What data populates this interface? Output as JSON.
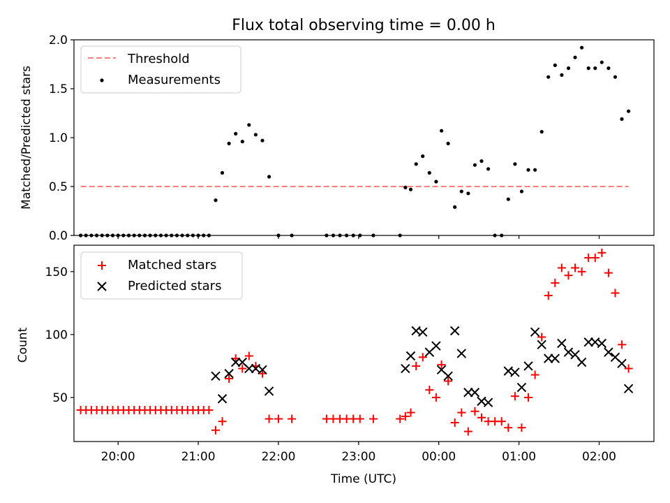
{
  "chart_data": [
    {
      "type": "scatter",
      "title": "Flux total observing time = 0.00 h",
      "xlabel": "",
      "ylabel": "Matched/Predicted stars",
      "ylim": [
        0,
        2.0
      ],
      "yticks": [
        "0.0",
        "0.5",
        "1.0",
        "1.5",
        "2.0"
      ],
      "xlim": [
        "19:27",
        "02:41"
      ],
      "grid": false,
      "legend": "top-left",
      "threshold": {
        "name": "Threshold",
        "value": 0.5,
        "x_start": "19:32",
        "x_end": "02:22",
        "color": "#ff7f7f"
      },
      "series": [
        {
          "name": "Measurements",
          "color": "#000000",
          "points": [
            [
              "19:32",
              0
            ],
            [
              "19:36",
              0
            ],
            [
              "19:40",
              0
            ],
            [
              "19:44",
              0
            ],
            [
              "19:48",
              0
            ],
            [
              "19:52",
              0
            ],
            [
              "19:56",
              0
            ],
            [
              "20:00",
              0
            ],
            [
              "20:04",
              0
            ],
            [
              "20:08",
              0
            ],
            [
              "20:12",
              0
            ],
            [
              "20:16",
              0
            ],
            [
              "20:20",
              0
            ],
            [
              "20:24",
              0
            ],
            [
              "20:28",
              0
            ],
            [
              "20:32",
              0
            ],
            [
              "20:36",
              0
            ],
            [
              "20:40",
              0
            ],
            [
              "20:44",
              0
            ],
            [
              "20:48",
              0
            ],
            [
              "20:52",
              0
            ],
            [
              "20:56",
              0
            ],
            [
              "21:00",
              0
            ],
            [
              "21:04",
              0
            ],
            [
              "21:08",
              0
            ],
            [
              "21:13",
              0.36
            ],
            [
              "21:18",
              0.64
            ],
            [
              "21:23",
              0.94
            ],
            [
              "21:28",
              1.04
            ],
            [
              "21:33",
              0.96
            ],
            [
              "21:38",
              1.13
            ],
            [
              "21:43",
              1.03
            ],
            [
              "21:48",
              0.97
            ],
            [
              "21:53",
              0.6
            ],
            [
              "22:00",
              0
            ],
            [
              "22:10",
              0
            ],
            [
              "22:36",
              0
            ],
            [
              "22:41",
              0
            ],
            [
              "22:46",
              0
            ],
            [
              "22:51",
              0
            ],
            [
              "22:56",
              0
            ],
            [
              "23:01",
              0
            ],
            [
              "23:11",
              0
            ],
            [
              "23:31",
              0
            ],
            [
              "23:35",
              0.49
            ],
            [
              "23:39",
              0.47
            ],
            [
              "23:43",
              0.73
            ],
            [
              "23:48",
              0.81
            ],
            [
              "23:53",
              0.64
            ],
            [
              "23:58",
              0.55
            ],
            [
              "00:02",
              1.07
            ],
            [
              "00:07",
              0.94
            ],
            [
              "00:12",
              0.29
            ],
            [
              "00:17",
              0.45
            ],
            [
              "00:22",
              0.43
            ],
            [
              "00:27",
              0.72
            ],
            [
              "00:32",
              0.76
            ],
            [
              "00:37",
              0.68
            ],
            [
              "00:42",
              0
            ],
            [
              "00:47",
              0
            ],
            [
              "00:52",
              0.37
            ],
            [
              "00:57",
              0.73
            ],
            [
              "01:02",
              0.45
            ],
            [
              "01:07",
              0.67
            ],
            [
              "01:12",
              0.67
            ],
            [
              "01:17",
              1.06
            ],
            [
              "01:22",
              1.62
            ],
            [
              "01:27",
              1.74
            ],
            [
              "01:32",
              1.64
            ],
            [
              "01:37",
              1.71
            ],
            [
              "01:42",
              1.82
            ],
            [
              "01:47",
              1.92
            ],
            [
              "01:52",
              1.71
            ],
            [
              "01:57",
              1.71
            ],
            [
              "02:02",
              1.77
            ],
            [
              "02:07",
              1.71
            ],
            [
              "02:12",
              1.62
            ],
            [
              "02:17",
              1.19
            ],
            [
              "02:22",
              1.27
            ]
          ]
        }
      ]
    },
    {
      "type": "scatter",
      "title": "",
      "xlabel": "Time (UTC)",
      "ylabel": "Count",
      "ylim": [
        15,
        171
      ],
      "yticks": [
        "50",
        "100",
        "150"
      ],
      "xlim": [
        "19:27",
        "02:41"
      ],
      "xticks": [
        "20:00",
        "21:00",
        "22:00",
        "23:00",
        "00:00",
        "01:00",
        "02:00"
      ],
      "grid": false,
      "legend": "top-left",
      "series": [
        {
          "name": "Matched stars",
          "marker": "plus",
          "color": "#ff0000",
          "points": [
            [
              "19:32",
              40
            ],
            [
              "19:36",
              40
            ],
            [
              "19:40",
              40
            ],
            [
              "19:44",
              40
            ],
            [
              "19:48",
              40
            ],
            [
              "19:52",
              40
            ],
            [
              "19:56",
              40
            ],
            [
              "20:00",
              40
            ],
            [
              "20:04",
              40
            ],
            [
              "20:08",
              40
            ],
            [
              "20:12",
              40
            ],
            [
              "20:16",
              40
            ],
            [
              "20:20",
              40
            ],
            [
              "20:24",
              40
            ],
            [
              "20:28",
              40
            ],
            [
              "20:32",
              40
            ],
            [
              "20:36",
              40
            ],
            [
              "20:40",
              40
            ],
            [
              "20:44",
              40
            ],
            [
              "20:48",
              40
            ],
            [
              "20:52",
              40
            ],
            [
              "20:56",
              40
            ],
            [
              "21:00",
              40
            ],
            [
              "21:04",
              40
            ],
            [
              "21:08",
              40
            ],
            [
              "21:13",
              24
            ],
            [
              "21:18",
              31
            ],
            [
              "21:23",
              65
            ],
            [
              "21:28",
              81
            ],
            [
              "21:33",
              73
            ],
            [
              "21:38",
              83
            ],
            [
              "21:43",
              75
            ],
            [
              "21:48",
              69
            ],
            [
              "21:53",
              33
            ],
            [
              "22:00",
              33
            ],
            [
              "22:10",
              33
            ],
            [
              "22:36",
              33
            ],
            [
              "22:41",
              33
            ],
            [
              "22:46",
              33
            ],
            [
              "22:51",
              33
            ],
            [
              "22:56",
              33
            ],
            [
              "23:01",
              33
            ],
            [
              "23:11",
              33
            ],
            [
              "23:31",
              33
            ],
            [
              "23:35",
              35
            ],
            [
              "23:39",
              38
            ],
            [
              "23:43",
              75
            ],
            [
              "23:48",
              82
            ],
            [
              "23:53",
              56
            ],
            [
              "23:58",
              50
            ],
            [
              "00:02",
              76
            ],
            [
              "00:07",
              63
            ],
            [
              "00:12",
              30
            ],
            [
              "00:17",
              38
            ],
            [
              "00:22",
              23
            ],
            [
              "00:27",
              39
            ],
            [
              "00:32",
              34
            ],
            [
              "00:37",
              31
            ],
            [
              "00:42",
              31
            ],
            [
              "00:47",
              31
            ],
            [
              "00:52",
              26
            ],
            [
              "00:57",
              51
            ],
            [
              "01:02",
              26
            ],
            [
              "01:07",
              50
            ],
            [
              "01:12",
              68
            ],
            [
              "01:17",
              98
            ],
            [
              "01:22",
              131
            ],
            [
              "01:27",
              141
            ],
            [
              "01:32",
              153
            ],
            [
              "01:37",
              147
            ],
            [
              "01:42",
              153
            ],
            [
              "01:47",
              150
            ],
            [
              "01:52",
              161
            ],
            [
              "01:57",
              161
            ],
            [
              "02:02",
              165
            ],
            [
              "02:07",
              149
            ],
            [
              "02:12",
              133
            ],
            [
              "02:17",
              92
            ],
            [
              "02:22",
              73
            ]
          ]
        },
        {
          "name": "Predicted stars",
          "marker": "x",
          "color": "#000000",
          "points": [
            [
              "21:13",
              67
            ],
            [
              "21:18",
              49
            ],
            [
              "21:23",
              69
            ],
            [
              "21:28",
              78
            ],
            [
              "21:33",
              78
            ],
            [
              "21:38",
              73
            ],
            [
              "21:43",
              73
            ],
            [
              "21:48",
              72
            ],
            [
              "21:53",
              55
            ],
            [
              "23:35",
              73
            ],
            [
              "23:39",
              83
            ],
            [
              "23:43",
              103
            ],
            [
              "23:48",
              102
            ],
            [
              "23:53",
              86
            ],
            [
              "23:58",
              91
            ],
            [
              "00:02",
              72
            ],
            [
              "00:07",
              67
            ],
            [
              "00:12",
              103
            ],
            [
              "00:17",
              85
            ],
            [
              "00:22",
              54
            ],
            [
              "00:27",
              54
            ],
            [
              "00:32",
              47
            ],
            [
              "00:37",
              46
            ],
            [
              "00:52",
              71
            ],
            [
              "00:57",
              70
            ],
            [
              "01:02",
              58
            ],
            [
              "01:07",
              75
            ],
            [
              "01:12",
              102
            ],
            [
              "01:17",
              92
            ],
            [
              "01:22",
              81
            ],
            [
              "01:27",
              81
            ],
            [
              "01:32",
              93
            ],
            [
              "01:37",
              86
            ],
            [
              "01:42",
              84
            ],
            [
              "01:47",
              78
            ],
            [
              "01:52",
              94
            ],
            [
              "01:57",
              94
            ],
            [
              "02:02",
              93
            ],
            [
              "02:07",
              86
            ],
            [
              "02:12",
              82
            ],
            [
              "02:17",
              77
            ],
            [
              "02:22",
              57
            ]
          ]
        }
      ]
    }
  ]
}
